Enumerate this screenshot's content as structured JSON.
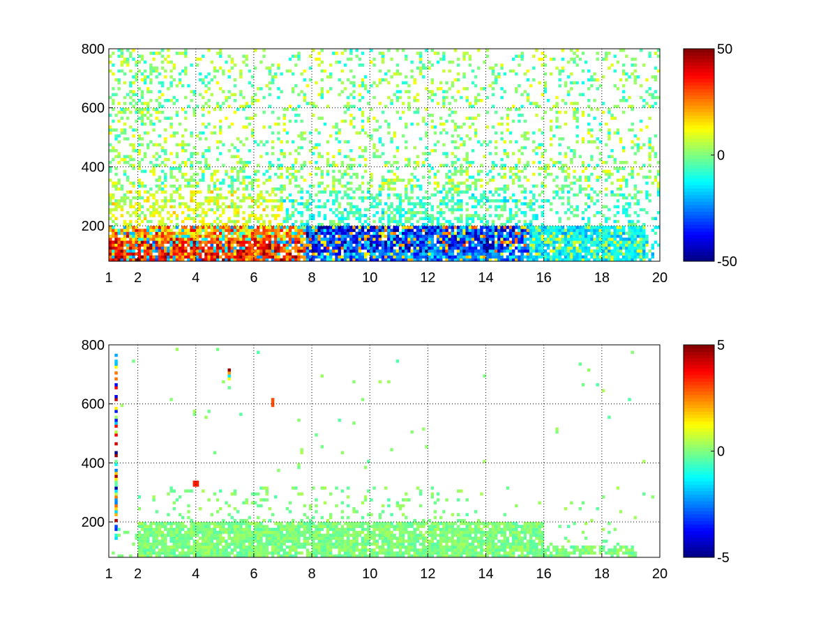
{
  "chart_data": [
    {
      "type": "heatmap",
      "title": "",
      "xlabel": "",
      "ylabel": "",
      "xlim": [
        1,
        20
      ],
      "ylim": [
        80,
        800
      ],
      "x_ticks": [
        1,
        2,
        4,
        6,
        8,
        10,
        12,
        14,
        16,
        18,
        20
      ],
      "x_tick_labels": [
        "1",
        "2",
        "4",
        "6",
        "8",
        "10",
        "12",
        "14",
        "16",
        "18",
        "20"
      ],
      "y_ticks": [
        200,
        400,
        600,
        800
      ],
      "y_tick_labels": [
        "200",
        "400",
        "600",
        "800"
      ],
      "grid": true,
      "colormap": "jet",
      "clim": [
        -50,
        50
      ],
      "colorbar_ticks": [
        -50,
        0,
        50
      ],
      "colorbar_tick_labels": [
        "-50",
        "0",
        "50"
      ],
      "field": {
        "x_range": [
          1,
          20
        ],
        "y_range": [
          80,
          800
        ],
        "description_level": "dense patchy field; strong positive values near y=80-180 for x<8, strong negative values around y=100-200 for x=8-15, sparse near-zero values above y=250"
      }
    },
    {
      "type": "heatmap",
      "title": "",
      "xlabel": "",
      "ylabel": "",
      "xlim": [
        1,
        20
      ],
      "ylim": [
        80,
        800
      ],
      "x_ticks": [
        1,
        2,
        4,
        6,
        8,
        10,
        12,
        14,
        16,
        18,
        20
      ],
      "x_tick_labels": [
        "1",
        "2",
        "4",
        "6",
        "8",
        "10",
        "12",
        "14",
        "16",
        "18",
        "20"
      ],
      "y_ticks": [
        200,
        400,
        600,
        800
      ],
      "y_tick_labels": [
        "200",
        "400",
        "600",
        "800"
      ],
      "grid": true,
      "colormap": "jet",
      "clim": [
        -5,
        5
      ],
      "colorbar_ticks": [
        -5,
        0,
        5
      ],
      "colorbar_tick_labels": [
        "-5",
        "0",
        "5"
      ],
      "field": {
        "x_range": [
          1,
          20
        ],
        "y_range": [
          80,
          800
        ],
        "description_level": "mostly near-zero values concentrated below y=200 for x=2-19, a few isolated extreme values near x=1.2, 4, 5.1, 6.7"
      }
    }
  ],
  "colors": {
    "background": "#ffffff",
    "axis": "#000000",
    "grid": "#000000"
  }
}
